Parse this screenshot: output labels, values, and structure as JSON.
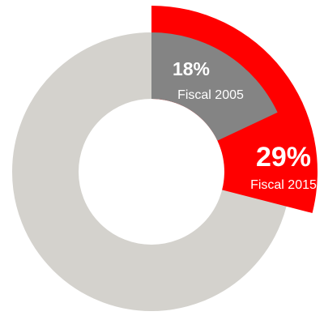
{
  "chart_data": {
    "type": "pie",
    "style": "donut",
    "slices": [
      {
        "category": "Fiscal 2015",
        "value_label": "29%",
        "value": 29,
        "color": "#ff0000",
        "highlighted": true
      },
      {
        "category": "Fiscal 2005",
        "value_label": "18%",
        "value": 18,
        "color": "#848484"
      }
    ],
    "remainder_color": "#d4d2cd",
    "label_color": "#ffffff"
  }
}
